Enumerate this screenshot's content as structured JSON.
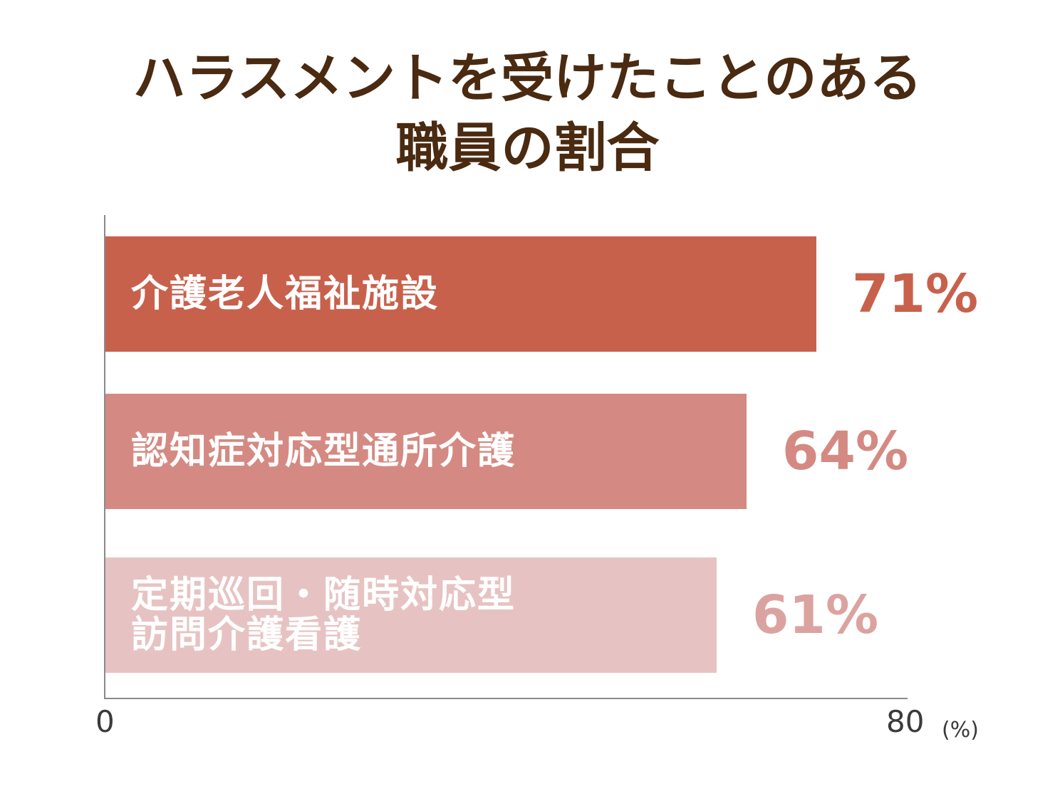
{
  "chart_data": {
    "type": "bar",
    "orientation": "horizontal",
    "title": "ハラスメントを受けたことのある職員の割合",
    "title_lines": [
      "ハラスメントを受けたことのある",
      "職員の割合"
    ],
    "categories": [
      "介護老人福祉施設",
      "認知症対応型通所介護",
      "定期巡回・随時対応型訪問介護看護"
    ],
    "category_labels": [
      "介護老人福祉施設",
      "認知症対応型通所介護",
      "定期巡回・随時対応型\n訪問介護看護"
    ],
    "values": [
      71,
      64,
      61
    ],
    "value_labels": [
      "71%",
      "64%",
      "61%"
    ],
    "xlabel": "(%)",
    "ylabel": "",
    "xlim": [
      0,
      80
    ],
    "x_ticks": [
      "0",
      "80"
    ],
    "grid": false,
    "legend": "none",
    "colors": [
      "#c8614c",
      "#d48a82",
      "#e6c3c2"
    ],
    "value_colors": [
      "#c8614c",
      "#d48a82",
      "#dba3a0"
    ]
  }
}
